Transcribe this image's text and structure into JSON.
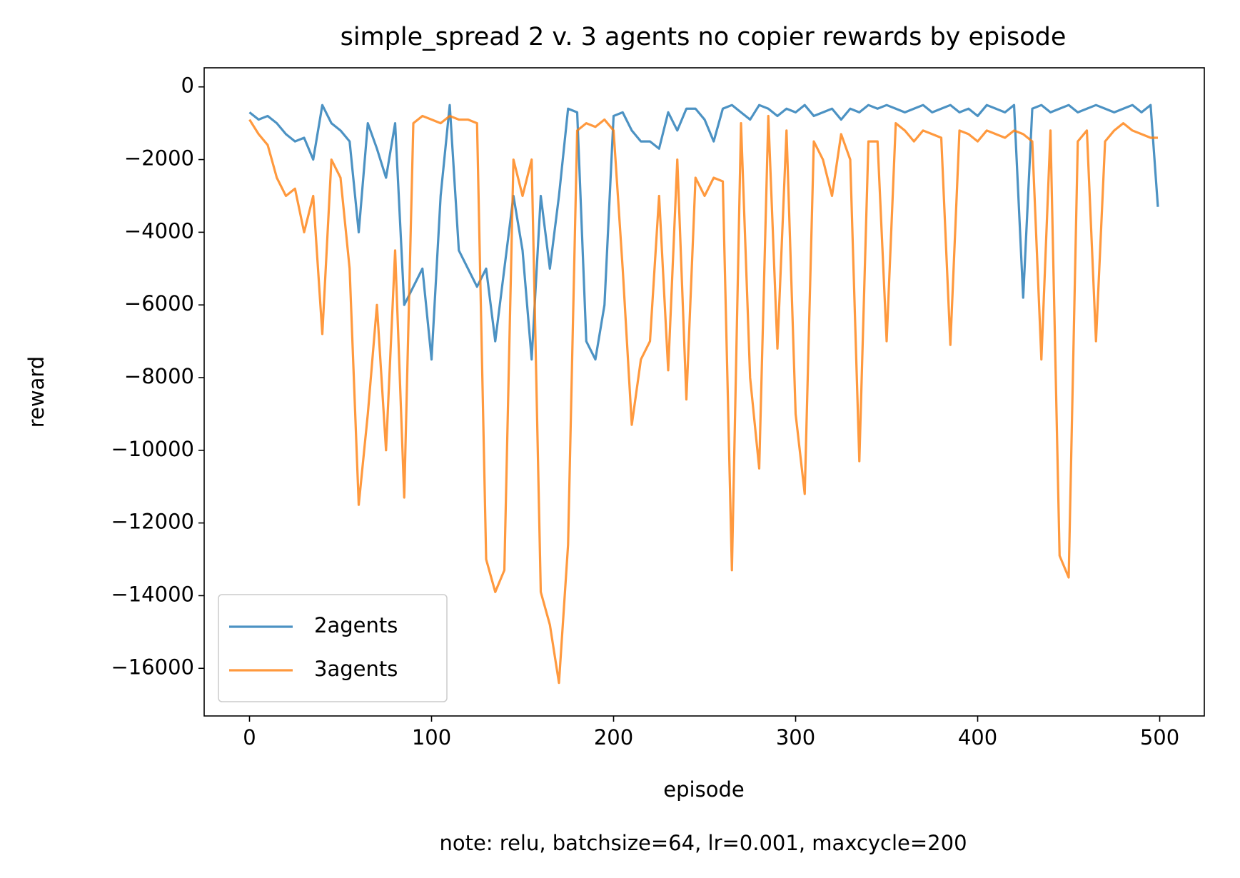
{
  "chart_data": {
    "type": "line",
    "title": "simple_spread 2 v. 3 agents no copier rewards by episode",
    "x_label": "episode",
    "y_label": "reward",
    "note": "note: relu, batchsize=64, lr=0.001, maxcycle=200",
    "x": [
      0,
      5,
      10,
      15,
      20,
      25,
      30,
      35,
      40,
      45,
      50,
      55,
      60,
      65,
      70,
      75,
      80,
      85,
      90,
      95,
      100,
      105,
      110,
      115,
      120,
      125,
      130,
      135,
      140,
      145,
      150,
      155,
      160,
      165,
      170,
      175,
      180,
      185,
      190,
      195,
      200,
      205,
      210,
      215,
      220,
      225,
      230,
      235,
      240,
      245,
      250,
      255,
      260,
      265,
      270,
      275,
      280,
      285,
      290,
      295,
      300,
      305,
      310,
      315,
      320,
      325,
      330,
      335,
      340,
      345,
      350,
      355,
      360,
      365,
      370,
      375,
      380,
      385,
      390,
      395,
      400,
      405,
      410,
      415,
      420,
      425,
      430,
      435,
      440,
      445,
      450,
      455,
      460,
      465,
      470,
      475,
      480,
      485,
      490,
      495,
      499
    ],
    "series": [
      {
        "name": "2agents",
        "color": "#1f77b4",
        "values": [
          -700,
          -900,
          -800,
          -1000,
          -1300,
          -1500,
          -1400,
          -2000,
          -500,
          -1000,
          -1200,
          -1500,
          -4000,
          -1000,
          -1700,
          -2500,
          -1000,
          -6000,
          -5500,
          -5000,
          -7500,
          -3000,
          -500,
          -4500,
          -5000,
          -5500,
          -5000,
          -7000,
          -5000,
          -3000,
          -4500,
          -7500,
          -3000,
          -5000,
          -3000,
          -600,
          -700,
          -7000,
          -7500,
          -6000,
          -800,
          -700,
          -1200,
          -1500,
          -1500,
          -1700,
          -700,
          -1200,
          -600,
          -600,
          -900,
          -1500,
          -600,
          -500,
          -700,
          -900,
          -500,
          -600,
          -800,
          -600,
          -700,
          -500,
          -800,
          -700,
          -600,
          -900,
          -600,
          -700,
          -500,
          -600,
          -500,
          -600,
          -700,
          -600,
          -500,
          -700,
          -600,
          -500,
          -700,
          -600,
          -800,
          -500,
          -600,
          -700,
          -500,
          -5800,
          -600,
          -500,
          -700,
          -600,
          -500,
          -700,
          -600,
          -500,
          -600,
          -700,
          -600,
          -500,
          -700,
          -500,
          -3300
        ]
      },
      {
        "name": "3agents",
        "color": "#ff7f0e",
        "values": [
          -900,
          -1300,
          -1600,
          -2500,
          -3000,
          -2800,
          -4000,
          -3000,
          -6800,
          -2000,
          -2500,
          -5000,
          -11500,
          -9000,
          -6000,
          -10000,
          -4500,
          -11300,
          -1000,
          -800,
          -900,
          -1000,
          -800,
          -900,
          -900,
          -1000,
          -13000,
          -13900,
          -13300,
          -2000,
          -3000,
          -2000,
          -13900,
          -14800,
          -16400,
          -12600,
          -1200,
          -1000,
          -1100,
          -900,
          -1200,
          -5000,
          -9300,
          -7500,
          -7000,
          -3000,
          -7800,
          -2000,
          -8600,
          -2500,
          -3000,
          -2500,
          -2600,
          -13300,
          -1000,
          -8000,
          -10500,
          -800,
          -7200,
          -1200,
          -9000,
          -11200,
          -1500,
          -2000,
          -3000,
          -1300,
          -2000,
          -10300,
          -1500,
          -1500,
          -7000,
          -1000,
          -1200,
          -1500,
          -1200,
          -1300,
          -1400,
          -7100,
          -1200,
          -1300,
          -1500,
          -1200,
          -1300,
          -1400,
          -1200,
          -1300,
          -1500,
          -7500,
          -1200,
          -12900,
          -13500,
          -1500,
          -1200,
          -7000,
          -1500,
          -1200,
          -1000,
          -1200,
          -1300,
          -1400,
          -1400
        ]
      }
    ],
    "xlim": [
      -24.9,
      524.5
    ],
    "xticks": [
      0,
      100,
      200,
      300,
      400,
      500
    ],
    "ylim": [
      -17311,
      525
    ],
    "yticks": [
      0,
      {
        "value": -2000,
        "label": "−2000"
      },
      {
        "value": -4000,
        "label": "−4000"
      },
      {
        "value": -6000,
        "label": "−6000"
      },
      {
        "value": -8000,
        "label": "−8000"
      },
      {
        "value": -10000,
        "label": "−10000"
      },
      {
        "value": -12000,
        "label": "−12000"
      },
      {
        "value": -14000,
        "label": "−14000"
      },
      {
        "value": -16000,
        "label": "−16000"
      }
    ],
    "line_opacity": 0.8,
    "legend": "lower left",
    "grid": false
  }
}
